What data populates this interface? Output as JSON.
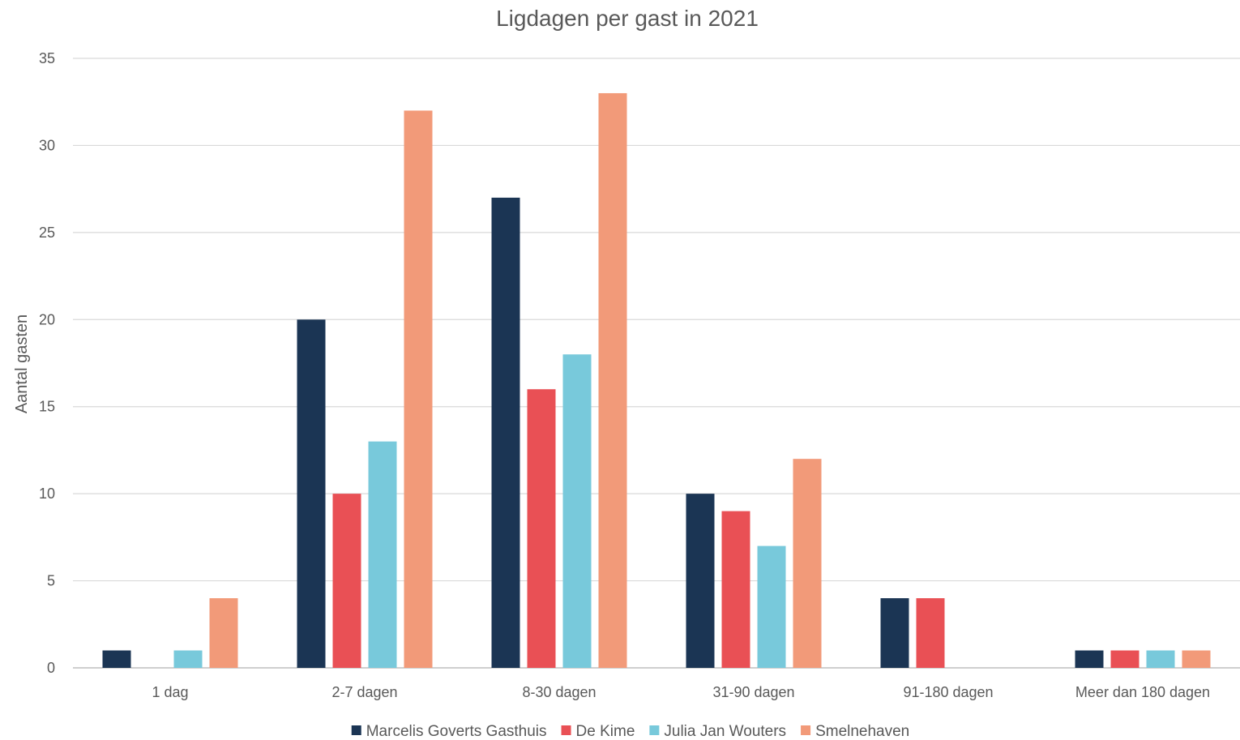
{
  "chart_data": {
    "type": "bar",
    "title": "Ligdagen per gast in 2021",
    "xlabel": "",
    "ylabel": "Aantal gasten",
    "ylim": [
      0,
      35
    ],
    "yticks": [
      0,
      5,
      10,
      15,
      20,
      25,
      30,
      35
    ],
    "grid": true,
    "legend_position": "bottom",
    "categories": [
      "1 dag",
      "2-7 dagen",
      "8-30 dagen",
      "31-90 dagen",
      "91-180 dagen",
      "Meer dan 180 dagen"
    ],
    "series": [
      {
        "name": "Marcelis Goverts Gasthuis",
        "color": "#1b3554",
        "values": [
          1,
          20,
          27,
          10,
          4,
          1
        ]
      },
      {
        "name": "De Kime",
        "color": "#e95055",
        "values": [
          0,
          10,
          16,
          9,
          4,
          1
        ]
      },
      {
        "name": "Julia Jan Wouters",
        "color": "#78c9db",
        "values": [
          1,
          13,
          18,
          7,
          0,
          1
        ]
      },
      {
        "name": "Smelnehaven",
        "color": "#f29a79",
        "values": [
          4,
          32,
          33,
          12,
          0,
          1
        ]
      }
    ]
  }
}
